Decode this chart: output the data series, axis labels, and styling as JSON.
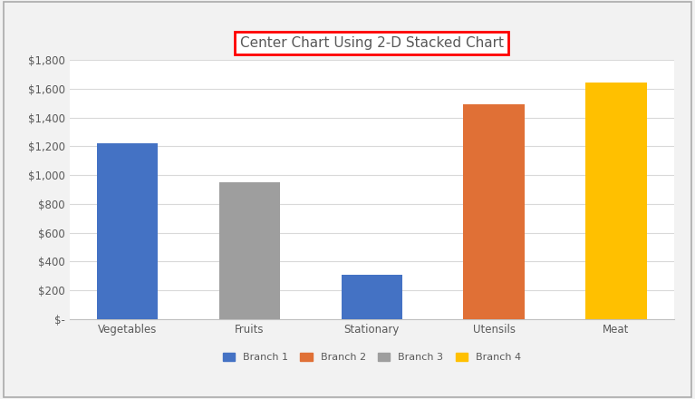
{
  "title": "Center Chart Using 2-D Stacked Chart",
  "categories": [
    "Vegetables",
    "Fruits",
    "Stationary",
    "Utensils",
    "Meat"
  ],
  "values": [
    1220,
    950,
    310,
    1490,
    1640
  ],
  "bar_colors": [
    "#4472C4",
    "#9E9E9E",
    "#4472C4",
    "#E07036",
    "#FFC000"
  ],
  "ylim": [
    0,
    1800
  ],
  "yticks": [
    0,
    200,
    400,
    600,
    800,
    1000,
    1200,
    1400,
    1600,
    1800
  ],
  "ytick_labels": [
    "$-",
    "$200",
    "$400",
    "$600",
    "$800",
    "$1,000",
    "$1,200",
    "$1,400",
    "$1,600",
    "$1,800"
  ],
  "legend_labels": [
    "Branch 1",
    "Branch 2",
    "Branch 3",
    "Branch 4"
  ],
  "legend_colors": [
    "#4472C4",
    "#E07036",
    "#9E9E9E",
    "#FFC000"
  ],
  "fig_bg_color": "#F2F2F2",
  "plot_bg_color": "#FFFFFF",
  "grid_color": "#D9D9D9",
  "title_fontsize": 11,
  "axis_fontsize": 8.5,
  "legend_fontsize": 8,
  "bar_width": 0.5,
  "outer_border_color": "#AAAAAA",
  "title_border_color": "#FF0000"
}
